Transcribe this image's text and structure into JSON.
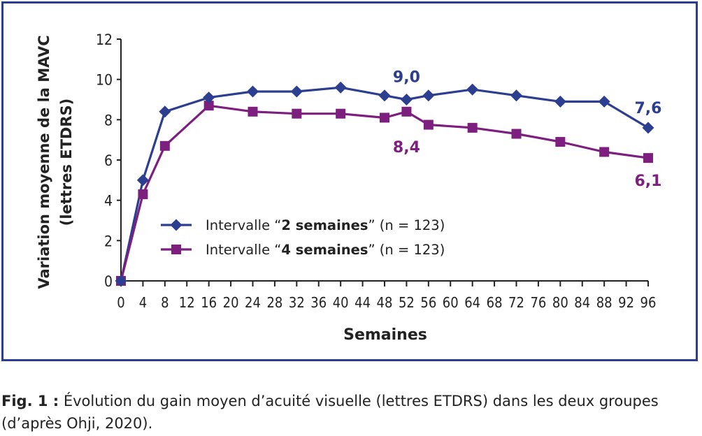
{
  "chart_data": {
    "type": "line",
    "xlabel": "Semaines",
    "ylabel_line1": "Variation moyenne de la MAVC",
    "ylabel_line2": "(lettres ETDRS)",
    "xlim": [
      0,
      96
    ],
    "ylim": [
      0,
      12
    ],
    "x_ticks": [
      0,
      4,
      8,
      12,
      16,
      20,
      24,
      28,
      32,
      36,
      40,
      44,
      48,
      52,
      56,
      60,
      64,
      68,
      72,
      76,
      80,
      84,
      88,
      92,
      96
    ],
    "y_ticks": [
      0,
      2,
      4,
      6,
      8,
      10,
      12
    ],
    "grid": false,
    "legend_position": "lower-left inside plot",
    "series": [
      {
        "name": "Intervalle “2 semaines” (n = 123)",
        "legend_prefix": "Intervalle “",
        "legend_bold": "2 semaines",
        "legend_suffix": "” (n = 123)",
        "color": "#2c3e8f",
        "marker": "diamond",
        "x": [
          0,
          4,
          8,
          16,
          24,
          32,
          40,
          48,
          52,
          56,
          64,
          72,
          80,
          88,
          96
        ],
        "y": [
          0,
          5.0,
          8.4,
          9.1,
          9.4,
          9.4,
          9.6,
          9.2,
          9.0,
          9.2,
          9.5,
          9.2,
          8.9,
          8.9,
          7.6
        ]
      },
      {
        "name": "Intervalle “4 semaines” (n = 123)",
        "legend_prefix": "Intervalle “",
        "legend_bold": "4 semaines",
        "legend_suffix": "” (n = 123)",
        "color": "#7d1f7e",
        "marker": "square",
        "x": [
          0,
          4,
          8,
          16,
          24,
          32,
          40,
          48,
          52,
          56,
          64,
          72,
          80,
          88,
          96
        ],
        "y": [
          0,
          4.3,
          6.7,
          8.7,
          8.4,
          8.3,
          8.3,
          8.1,
          8.4,
          7.75,
          7.6,
          7.3,
          6.9,
          6.4,
          6.1
        ]
      }
    ],
    "annotations": [
      {
        "text": "9,0",
        "series": 0,
        "x": 52
      },
      {
        "text": "7,6",
        "series": 0,
        "x": 96
      },
      {
        "text": "8,4",
        "series": 1,
        "x": 52
      },
      {
        "text": "6,1",
        "series": 1,
        "x": 96
      }
    ]
  },
  "caption": {
    "label": "Fig. 1 :",
    "text": " Évolution du gain moyen d’acuité visuelle (lettres ETDRS) dans les deux groupes (d’après Ohji, 2020)."
  }
}
